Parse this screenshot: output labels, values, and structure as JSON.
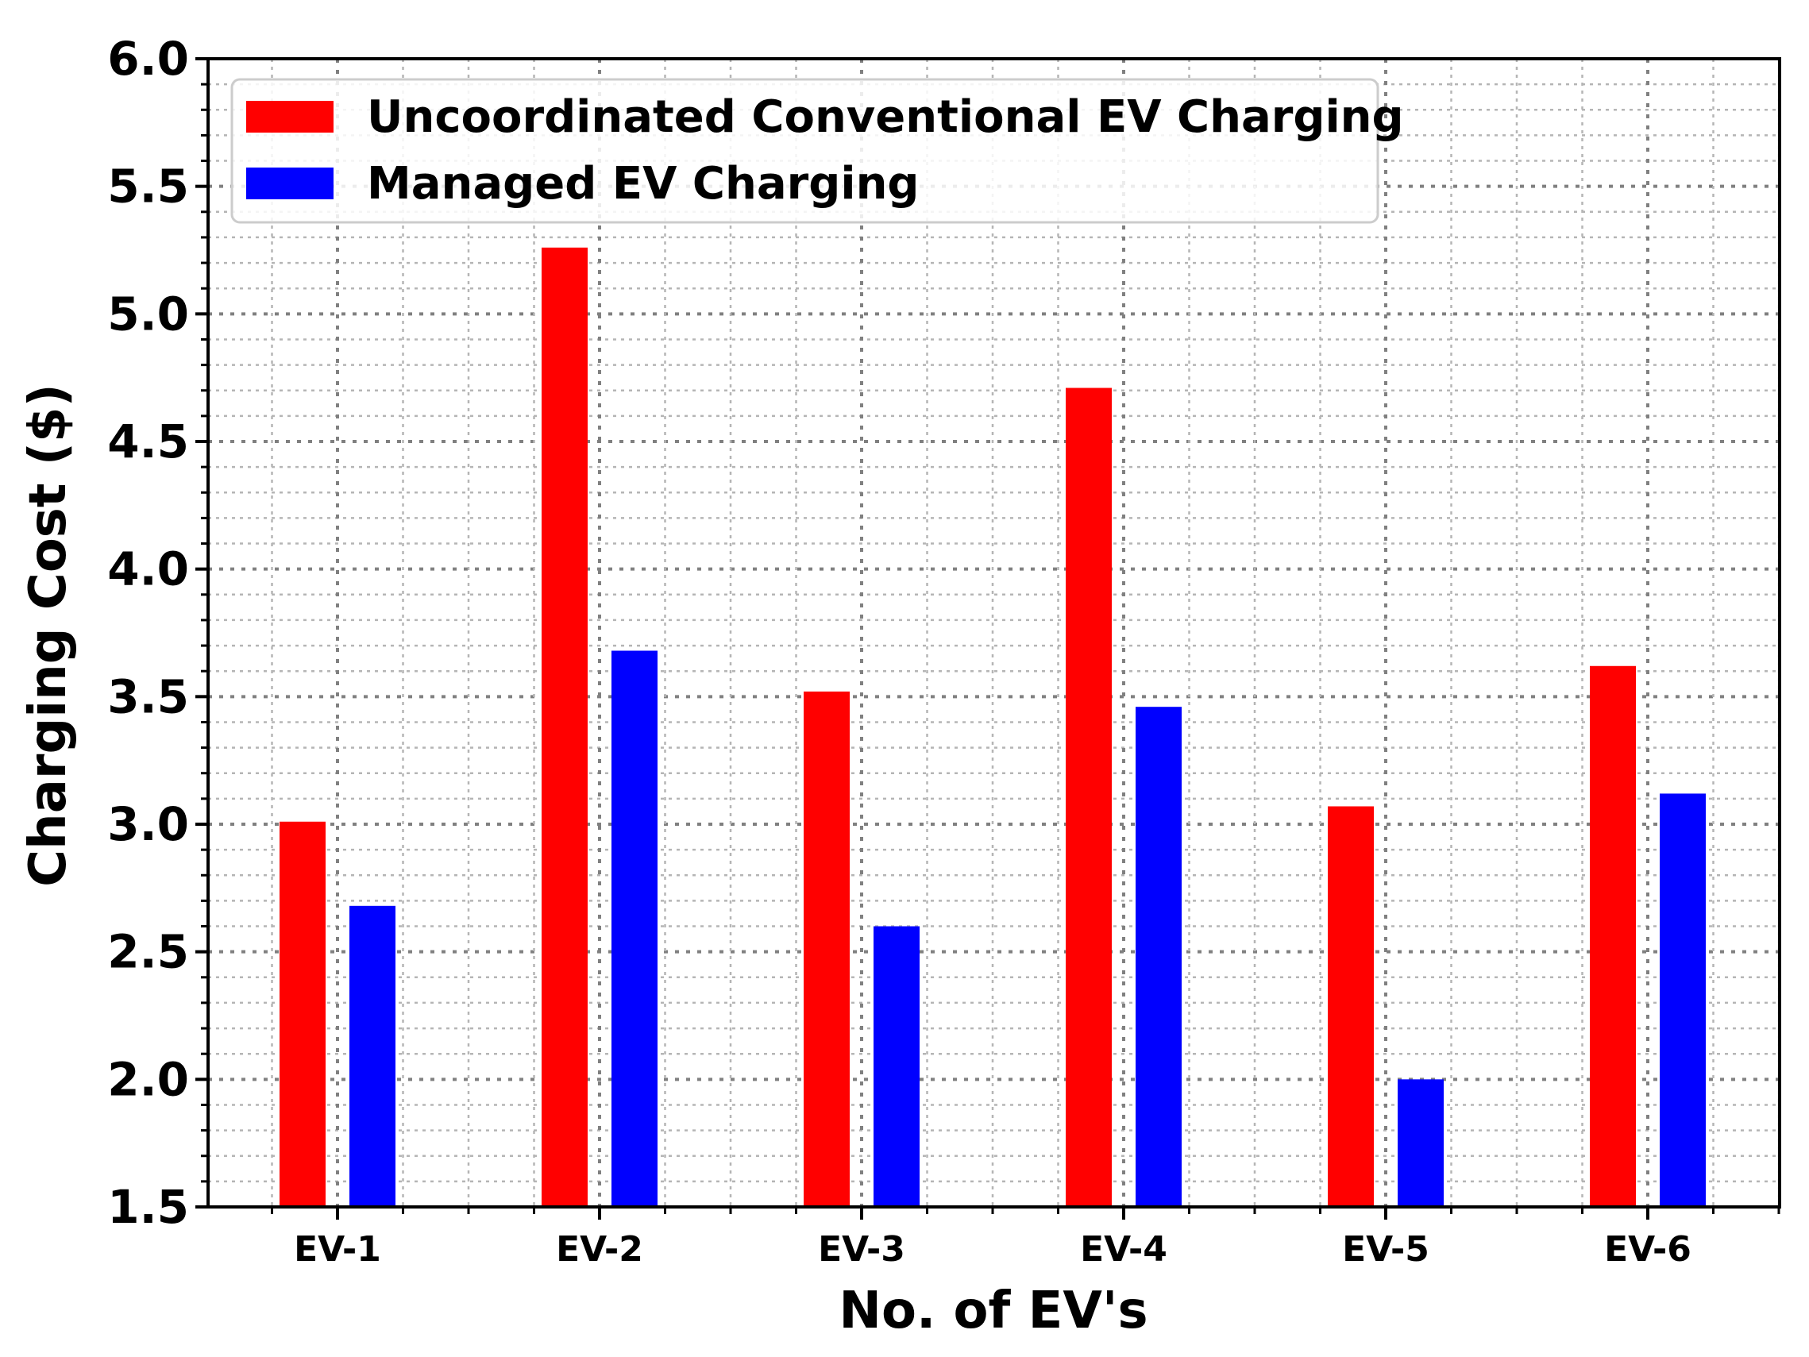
{
  "chart_data": {
    "type": "bar",
    "title": "",
    "xlabel": "No. of EV's",
    "ylabel": "Charging Cost ($)",
    "categories": [
      "EV-1",
      "EV-2",
      "EV-3",
      "EV-4",
      "EV-5",
      "EV-6"
    ],
    "series": [
      {
        "name": "Uncoordinated Conventional EV Charging",
        "color": "#ff0000",
        "values": [
          3.01,
          5.26,
          3.52,
          4.71,
          3.07,
          3.62
        ]
      },
      {
        "name": "Managed EV Charging",
        "color": "#0000ff",
        "values": [
          2.68,
          3.68,
          2.6,
          3.46,
          2.0,
          3.12
        ]
      }
    ],
    "ylim": [
      1.5,
      6.0
    ],
    "yticks": [
      "1.5",
      "2.0",
      "2.5",
      "3.0",
      "3.5",
      "4.0",
      "4.5",
      "5.0",
      "5.5",
      "6.0"
    ],
    "grid": true,
    "legend_position": "top-left"
  }
}
